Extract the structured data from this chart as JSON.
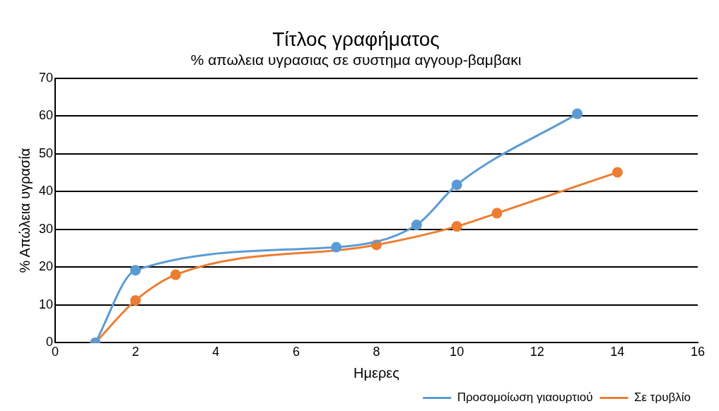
{
  "chart_data": {
    "type": "line",
    "title": "Τίτλος γραφήματος",
    "subtitle": "% απωλεια υγρασιας σε συστημα αγγουρ-βαμβακι",
    "xlabel": "Ημερες",
    "ylabel": "% Απώλεια υγρασία",
    "xlim": [
      0,
      16
    ],
    "xticks": [
      0,
      2,
      4,
      6,
      8,
      10,
      12,
      14,
      16
    ],
    "ylim": [
      0,
      70
    ],
    "yticks": [
      0,
      10,
      20,
      30,
      40,
      50,
      60,
      70
    ],
    "grid": "y",
    "legend": "bottom right",
    "marker": "circle",
    "series": [
      {
        "name": "Προσομοίωση γιαουρτιού",
        "color": "#5b9bd5",
        "x": [
          1,
          2,
          7,
          9,
          10,
          13
        ],
        "values": [
          0,
          19.2,
          25.3,
          31.2,
          41.8,
          60.6
        ]
      },
      {
        "name": "Σε τρυβλίο",
        "color": "#ed7d31",
        "x": [
          1,
          2,
          3,
          8,
          10,
          11,
          14
        ],
        "values": [
          0,
          11.2,
          18,
          25.9,
          30.8,
          34.3,
          45.1
        ]
      }
    ]
  }
}
